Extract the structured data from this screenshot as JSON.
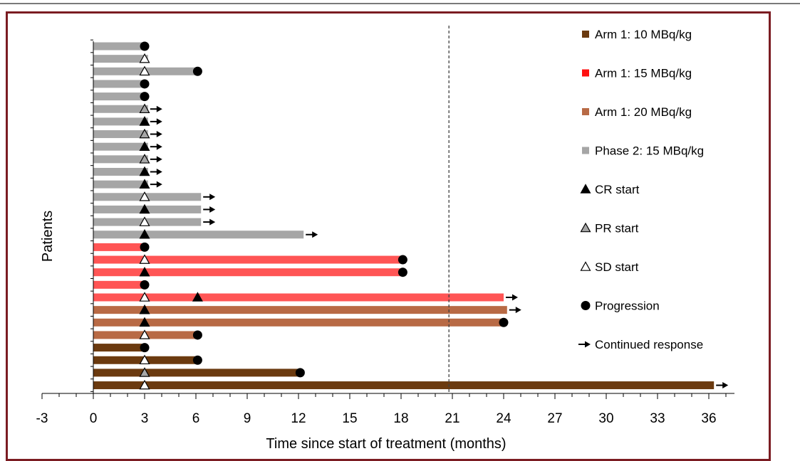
{
  "chart_data": {
    "type": "bar",
    "orientation": "horizontal",
    "xlabel": "Time since start of treatment (months)",
    "ylabel": "Patients",
    "xlim": [
      -3,
      37.5
    ],
    "xticks": [
      -3,
      0,
      3,
      6,
      9,
      12,
      15,
      18,
      21,
      24,
      27,
      30,
      33,
      36
    ],
    "reference_line_x": 20.8,
    "colors": {
      "arm1_10": "#6b3a0f",
      "arm1_15": "#ff5555",
      "arm1_20": "#b86a45",
      "phase2_15": "#a6a6a6",
      "legend_arm1_15": "#ff1010"
    },
    "legend": [
      {
        "key": "arm1_10",
        "label": "Arm 1: 10 MBq/kg",
        "marker": "square"
      },
      {
        "key": "arm1_15",
        "label": "Arm 1: 15 MBq/kg",
        "marker": "square"
      },
      {
        "key": "arm1_20",
        "label": "Arm 1: 20 MBq/kg",
        "marker": "square"
      },
      {
        "key": "phase2_15",
        "label": "Phase 2: 15 MBq/kg",
        "marker": "square"
      },
      {
        "key": "cr",
        "label": "CR start",
        "marker": "triangle-black"
      },
      {
        "key": "pr",
        "label": "PR start",
        "marker": "triangle-gray"
      },
      {
        "key": "sd",
        "label": "SD start",
        "marker": "triangle-white"
      },
      {
        "key": "prog",
        "label": "Progression",
        "marker": "circle"
      },
      {
        "key": "cont",
        "label": "Continued response",
        "marker": "arrow"
      }
    ],
    "series": [
      {
        "group": "phase2_15",
        "end": 3.0,
        "start_marker": "",
        "start_at": 3,
        "extra_marker": "",
        "extra_at": null,
        "progression": true,
        "continued": false
      },
      {
        "group": "phase2_15",
        "end": 3.2,
        "start_marker": "sd",
        "start_at": 3,
        "extra_marker": "",
        "extra_at": null,
        "progression": false,
        "continued": false
      },
      {
        "group": "phase2_15",
        "end": 6.1,
        "start_marker": "sd",
        "start_at": 3,
        "extra_marker": "",
        "extra_at": null,
        "progression": true,
        "continued": false
      },
      {
        "group": "phase2_15",
        "end": 3.0,
        "start_marker": "",
        "start_at": 3,
        "extra_marker": "",
        "extra_at": null,
        "progression": true,
        "continued": false
      },
      {
        "group": "phase2_15",
        "end": 3.0,
        "start_marker": "",
        "start_at": 3,
        "extra_marker": "",
        "extra_at": null,
        "progression": true,
        "continued": false
      },
      {
        "group": "phase2_15",
        "end": 3.2,
        "start_marker": "pr",
        "start_at": 3,
        "extra_marker": "",
        "extra_at": null,
        "progression": false,
        "continued": true
      },
      {
        "group": "phase2_15",
        "end": 3.2,
        "start_marker": "cr",
        "start_at": 3,
        "extra_marker": "",
        "extra_at": null,
        "progression": false,
        "continued": true
      },
      {
        "group": "phase2_15",
        "end": 3.2,
        "start_marker": "pr",
        "start_at": 3,
        "extra_marker": "",
        "extra_at": null,
        "progression": false,
        "continued": true
      },
      {
        "group": "phase2_15",
        "end": 3.2,
        "start_marker": "cr",
        "start_at": 3,
        "extra_marker": "",
        "extra_at": null,
        "progression": false,
        "continued": true
      },
      {
        "group": "phase2_15",
        "end": 3.2,
        "start_marker": "pr",
        "start_at": 3,
        "extra_marker": "",
        "extra_at": null,
        "progression": false,
        "continued": true
      },
      {
        "group": "phase2_15",
        "end": 3.2,
        "start_marker": "cr",
        "start_at": 3,
        "extra_marker": "",
        "extra_at": null,
        "progression": false,
        "continued": true
      },
      {
        "group": "phase2_15",
        "end": 3.2,
        "start_marker": "cr",
        "start_at": 3,
        "extra_marker": "",
        "extra_at": null,
        "progression": false,
        "continued": true
      },
      {
        "group": "phase2_15",
        "end": 6.3,
        "start_marker": "sd",
        "start_at": 3,
        "extra_marker": "",
        "extra_at": null,
        "progression": false,
        "continued": true
      },
      {
        "group": "phase2_15",
        "end": 6.3,
        "start_marker": "cr",
        "start_at": 3,
        "extra_marker": "",
        "extra_at": null,
        "progression": false,
        "continued": true
      },
      {
        "group": "phase2_15",
        "end": 6.3,
        "start_marker": "sd",
        "start_at": 3,
        "extra_marker": "",
        "extra_at": null,
        "progression": false,
        "continued": true
      },
      {
        "group": "phase2_15",
        "end": 12.3,
        "start_marker": "cr",
        "start_at": 3,
        "extra_marker": "",
        "extra_at": null,
        "progression": false,
        "continued": true
      },
      {
        "group": "arm1_15",
        "end": 3.0,
        "start_marker": "",
        "start_at": 3,
        "extra_marker": "",
        "extra_at": null,
        "progression": true,
        "continued": false
      },
      {
        "group": "arm1_15",
        "end": 18.1,
        "start_marker": "sd",
        "start_at": 3,
        "extra_marker": "",
        "extra_at": null,
        "progression": true,
        "continued": false
      },
      {
        "group": "arm1_15",
        "end": 18.1,
        "start_marker": "cr",
        "start_at": 3,
        "extra_marker": "",
        "extra_at": null,
        "progression": true,
        "continued": false
      },
      {
        "group": "arm1_15",
        "end": 3.0,
        "start_marker": "",
        "start_at": 3,
        "extra_marker": "",
        "extra_at": null,
        "progression": true,
        "continued": false
      },
      {
        "group": "arm1_15",
        "end": 24.0,
        "start_marker": "sd",
        "start_at": 3,
        "extra_marker": "cr",
        "extra_at": 6.1,
        "progression": false,
        "continued": true
      },
      {
        "group": "arm1_20",
        "end": 24.2,
        "start_marker": "cr",
        "start_at": 3,
        "extra_marker": "",
        "extra_at": null,
        "progression": false,
        "continued": true
      },
      {
        "group": "arm1_20",
        "end": 24.0,
        "start_marker": "cr",
        "start_at": 3,
        "extra_marker": "",
        "extra_at": null,
        "progression": true,
        "continued": false
      },
      {
        "group": "arm1_20",
        "end": 6.1,
        "start_marker": "sd",
        "start_at": 3,
        "extra_marker": "",
        "extra_at": null,
        "progression": true,
        "continued": false
      },
      {
        "group": "arm1_10",
        "end": 3.0,
        "start_marker": "",
        "start_at": 3,
        "extra_marker": "",
        "extra_at": null,
        "progression": true,
        "continued": false
      },
      {
        "group": "arm1_10",
        "end": 6.1,
        "start_marker": "sd",
        "start_at": 3,
        "extra_marker": "",
        "extra_at": null,
        "progression": true,
        "continued": false
      },
      {
        "group": "arm1_10",
        "end": 12.1,
        "start_marker": "pr",
        "start_at": 3,
        "extra_marker": "",
        "extra_at": null,
        "progression": true,
        "continued": false
      },
      {
        "group": "arm1_10",
        "end": 36.3,
        "start_marker": "sd",
        "start_at": 3,
        "extra_marker": "",
        "extra_at": null,
        "progression": false,
        "continued": true
      }
    ]
  }
}
